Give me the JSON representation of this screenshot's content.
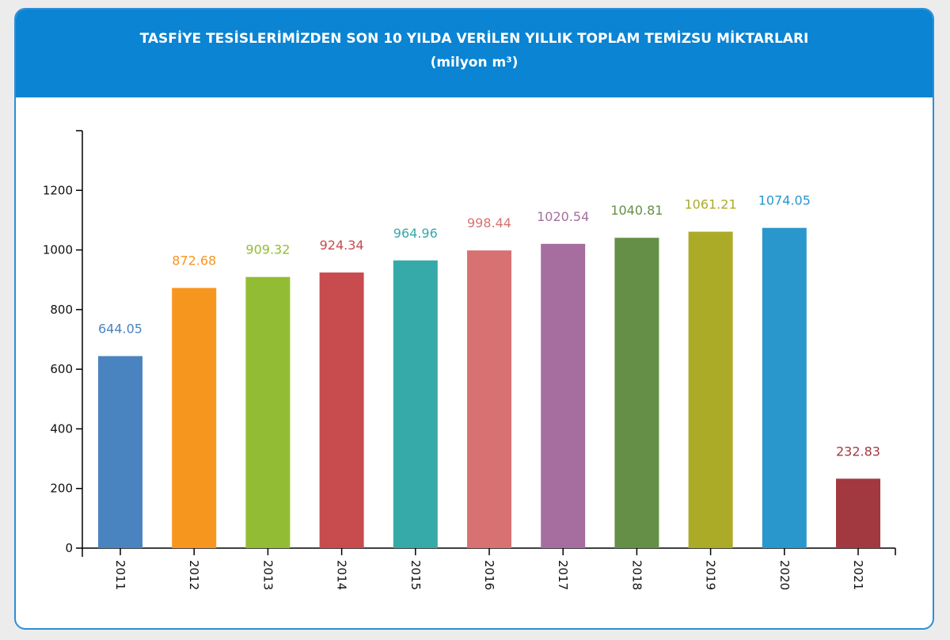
{
  "chart_data": {
    "type": "bar",
    "title": "TASFİYE TESİSLERİMİZDEN SON 10 YILDA VERİLEN YILLIK TOPLAM TEMİZSU MİKTARLARI",
    "subtitle": "(milyon m³)",
    "xlabel": "",
    "ylabel": "",
    "ylim": [
      0,
      1400
    ],
    "yticks": [
      0,
      200,
      400,
      600,
      800,
      1000,
      1200
    ],
    "grid": false,
    "categories": [
      "2011",
      "2012",
      "2013",
      "2014",
      "2015",
      "2016",
      "2017",
      "2018",
      "2019",
      "2020",
      "2021"
    ],
    "values": [
      644.05,
      872.68,
      909.32,
      924.34,
      964.96,
      998.44,
      1020.54,
      1040.81,
      1061.21,
      1074.05,
      232.83
    ],
    "labels": [
      "644.05",
      "872.68",
      "909.32",
      "924.34",
      "964.96",
      "998.44",
      "1020.54",
      "1040.81",
      "1061.21",
      "1074.05",
      "232.83"
    ],
    "colors": [
      "#4a84c0",
      "#f7961f",
      "#93bc35",
      "#c84b4e",
      "#36aaa8",
      "#d87272",
      "#a66e9f",
      "#658f46",
      "#abab27",
      "#2997cb",
      "#a23840"
    ],
    "header_color": "#0a84d3"
  }
}
